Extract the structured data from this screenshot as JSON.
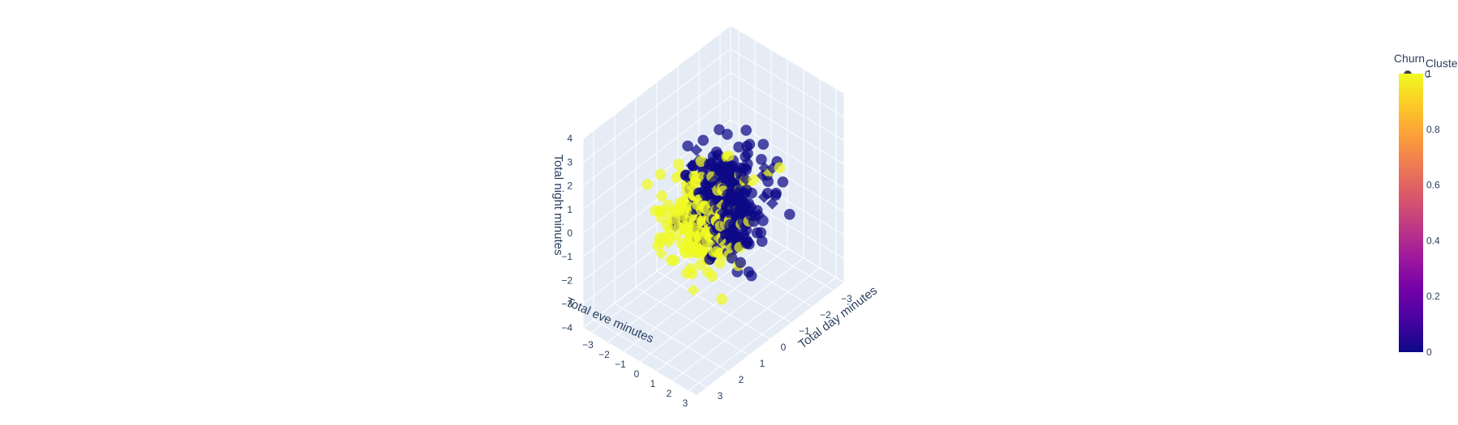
{
  "chart_data": {
    "type": "scatter3d",
    "title": "",
    "xlabel": "Total day minutes",
    "ylabel": "Total eve minutes",
    "zlabel": "Total night minutes",
    "x_ticks": [
      "−3",
      "−2",
      "−1",
      "0",
      "1",
      "2",
      "3"
    ],
    "y_ticks": [
      "−3",
      "−2",
      "−1",
      "0",
      "1",
      "2",
      "3"
    ],
    "z_ticks": [
      "−4",
      "−3",
      "−2",
      "−1",
      "0",
      "1",
      "2",
      "3",
      "4"
    ],
    "xlim": [
      -3.5,
      3.5
    ],
    "ylim": [
      -3.5,
      3.5
    ],
    "zlim": [
      -4,
      4
    ],
    "color_by": "Cluster",
    "symbol_by": "Churn",
    "colorscale": [
      "#0d0887",
      "#46039f",
      "#7201a8",
      "#9c179e",
      "#bd3786",
      "#d8576b",
      "#ed7953",
      "#fb9f3a",
      "#fdca26",
      "#f0f921"
    ],
    "colorbar": {
      "title": "Cluster",
      "ticks": [
        "0",
        "0.2",
        "0.4",
        "0.6",
        "0.8",
        "1"
      ],
      "range": [
        0,
        1
      ]
    },
    "legend": {
      "title": "Churn",
      "items": [
        {
          "label": "0",
          "symbol": "circle"
        },
        {
          "label": "1",
          "symbol": "diamond"
        }
      ]
    },
    "n_points": 520,
    "background": "#e5ecf6",
    "grid": true
  }
}
